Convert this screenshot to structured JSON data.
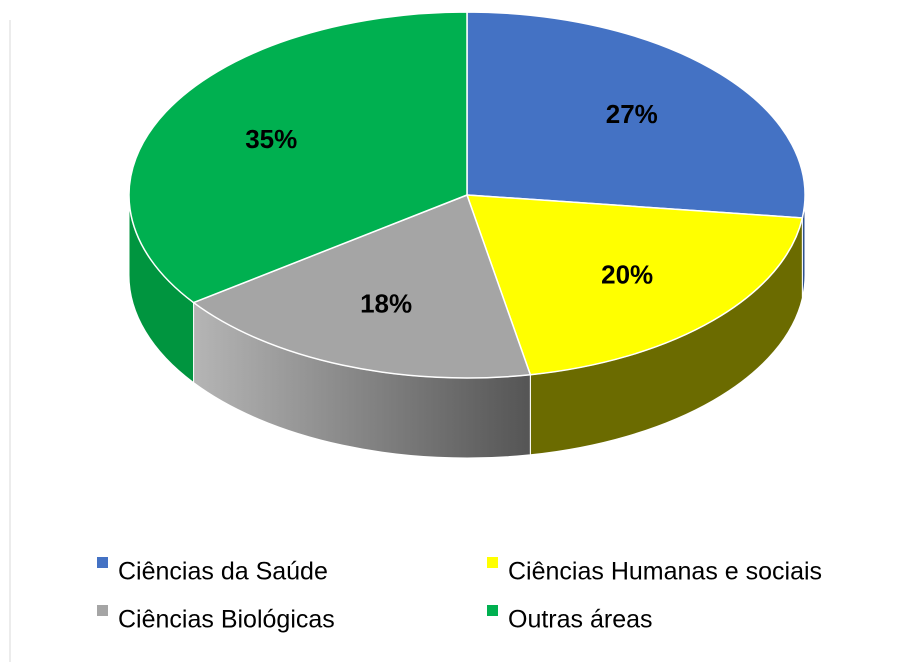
{
  "chart_data": {
    "type": "pie",
    "categories": [
      "Ciências da Saúde",
      "Ciências Humanas e sociais",
      "Ciências Biológicas",
      "Outras áreas"
    ],
    "values": [
      27,
      20,
      18,
      35
    ],
    "value_labels": [
      "27%",
      "20%",
      "18%",
      "35%"
    ],
    "colors": [
      "#4472c4",
      "#ffff00",
      "#a5a5a5",
      "#00b050"
    ],
    "side_colors": [
      "#2f528f",
      "#6b6b00",
      "#6e6e6e",
      "#00953f"
    ],
    "legend": "bottom"
  }
}
